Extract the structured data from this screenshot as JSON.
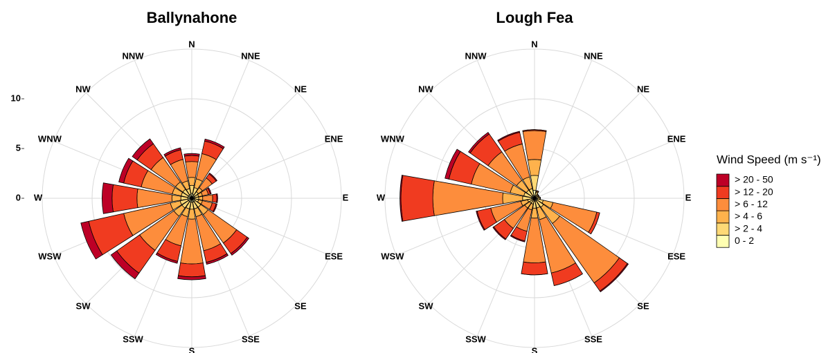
{
  "chart_data": [
    {
      "type": "windrose",
      "title": "Ballynahone",
      "categories": [
        "N",
        "NNE",
        "NE",
        "ENE",
        "E",
        "ESE",
        "SE",
        "SSE",
        "S",
        "SSW",
        "SW",
        "WSW",
        "W",
        "WNW",
        "NW",
        "NNW"
      ],
      "ylim": [
        0,
        15
      ],
      "yticks": [
        0,
        5,
        10
      ],
      "tick_labels": true,
      "legend_title": "Wind Speed (m s⁻¹)",
      "series": [
        {
          "name": "0 - 2",
          "color": "#ffffb2",
          "values": [
            0.5,
            0.4,
            0.3,
            0.3,
            0.3,
            0.3,
            0.4,
            0.4,
            0.4,
            0.4,
            0.4,
            0.4,
            0.4,
            0.4,
            0.4,
            0.4
          ]
        },
        {
          "name": "> 2 - 4",
          "color": "#fed976",
          "values": [
            0.8,
            0.7,
            0.5,
            0.4,
            0.4,
            0.4,
            0.7,
            0.7,
            0.7,
            0.7,
            0.8,
            0.8,
            0.7,
            0.7,
            0.7,
            0.6
          ]
        },
        {
          "name": "> 4 - 6",
          "color": "#feb24c",
          "values": [
            0.8,
            0.9,
            0.5,
            0.4,
            0.4,
            0.4,
            0.9,
            0.8,
            1.0,
            0.8,
            1.0,
            1.0,
            0.9,
            0.9,
            0.9,
            0.8
          ]
        },
        {
          "name": "> 6 - 12",
          "color": "#fd8d3c",
          "values": [
            1.6,
            2.6,
            1.2,
            0.6,
            1.0,
            1.0,
            3.5,
            3.5,
            4.5,
            3.0,
            4.2,
            4.8,
            3.5,
            3.2,
            3.0,
            2.2
          ]
        },
        {
          "name": "> 12 - 20",
          "color": "#f03b20",
          "values": [
            0.6,
            1.3,
            0.5,
            0.2,
            0.4,
            0.4,
            1.3,
            1.2,
            1.3,
            1.6,
            2.8,
            3.6,
            2.5,
            1.8,
            1.7,
            1.0
          ]
        },
        {
          "name": "> 20 - 50",
          "color": "#bd0026",
          "values": [
            0.2,
            0.2,
            0.1,
            0.1,
            0.1,
            0.1,
            0.2,
            0.2,
            0.3,
            0.2,
            0.7,
            0.8,
            1.0,
            0.5,
            0.6,
            0.2
          ]
        }
      ]
    },
    {
      "type": "windrose",
      "title": "Lough Fea",
      "categories": [
        "N",
        "NNE",
        "NE",
        "ENE",
        "E",
        "ESE",
        "SE",
        "SSE",
        "S",
        "SSW",
        "SW",
        "WSW",
        "W",
        "WNW",
        "NW",
        "NNW"
      ],
      "ylim": [
        0,
        15
      ],
      "yticks": [
        0,
        5,
        10
      ],
      "tick_labels": false,
      "series": [
        {
          "name": "0 - 2",
          "color": "#ffffb2",
          "values": [
            0.8,
            0.3,
            0.2,
            0.2,
            0.3,
            0.3,
            0.3,
            0.3,
            0.3,
            0.2,
            0.2,
            0.2,
            0.3,
            0.3,
            0.3,
            0.3
          ]
        },
        {
          "name": "> 2 - 4",
          "color": "#fed976",
          "values": [
            1.5,
            0.3,
            0.2,
            0.2,
            0.2,
            0.6,
            0.8,
            0.7,
            0.7,
            0.4,
            0.4,
            0.5,
            0.9,
            0.8,
            0.7,
            0.7
          ]
        },
        {
          "name": "> 4 - 6",
          "color": "#feb24c",
          "values": [
            1.6,
            0.1,
            0.1,
            0.1,
            0.1,
            1.0,
            2.0,
            1.2,
            1.0,
            0.6,
            0.6,
            0.7,
            2.0,
            1.4,
            1.2,
            1.2
          ]
        },
        {
          "name": "> 6 - 12",
          "color": "#fd8d3c",
          "values": [
            2.9,
            0.1,
            0,
            0,
            0,
            4.5,
            7.3,
            5.5,
            4.5,
            2.2,
            2.5,
            3.1,
            7.0,
            4.0,
            3.5,
            3.4
          ]
        },
        {
          "name": "> 12 - 20",
          "color": "#f03b20",
          "values": [
            0.1,
            0,
            0,
            0,
            0,
            0.3,
            1.0,
            1.3,
            1.2,
            1.0,
            1.3,
            1.4,
            3.2,
            2.3,
            2.2,
            1.2
          ]
        },
        {
          "name": "> 20 - 50",
          "color": "#bd0026",
          "values": [
            0,
            0,
            0,
            0,
            0,
            0,
            0.1,
            0,
            0,
            0.1,
            0.1,
            0.1,
            0.1,
            0.4,
            0.2,
            0.1
          ]
        }
      ]
    }
  ]
}
